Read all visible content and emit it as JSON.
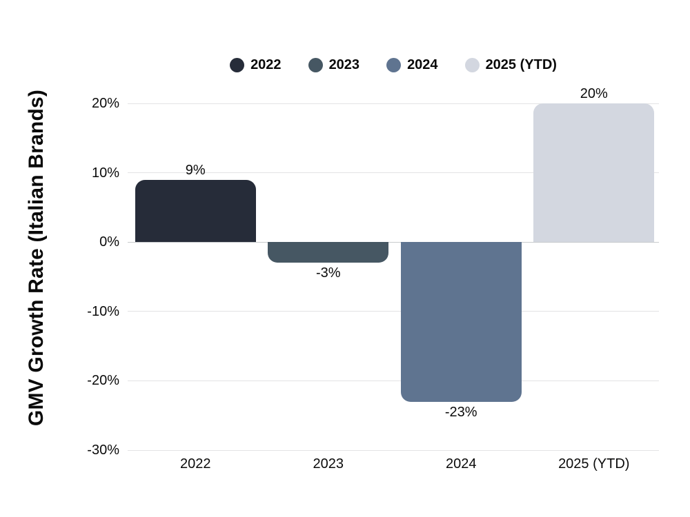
{
  "chart_data": {
    "type": "bar",
    "title": "",
    "xlabel": "",
    "ylabel": "GMV Growth Rate (Italian Brands)",
    "categories": [
      "2022",
      "2023",
      "2024",
      "2025 (YTD)"
    ],
    "values": [
      9,
      -3,
      -23,
      20
    ],
    "value_labels": [
      "9%",
      "-3%",
      "-23%",
      "20%"
    ],
    "bar_colors": [
      "#262c39",
      "#465763",
      "#5f7490",
      "#d3d7e0"
    ],
    "legend": [
      {
        "label": "2022",
        "color": "#262c39"
      },
      {
        "label": "2023",
        "color": "#465763"
      },
      {
        "label": "2024",
        "color": "#5f7490"
      },
      {
        "label": "2025 (YTD)",
        "color": "#d3d7e0"
      }
    ],
    "legend_position": "top",
    "grid": true,
    "ylim": [
      -30,
      20
    ],
    "yticks": [
      20,
      10,
      0,
      -10,
      -20,
      -30
    ],
    "ytick_labels": [
      "20%",
      "10%",
      "0%",
      "-10%",
      "-20%",
      "-30%"
    ]
  },
  "colors": {
    "background": "#ffffff",
    "grid": "#e3e3e4",
    "zero_line": "#c7cacd",
    "text": "#0a0a0a"
  }
}
